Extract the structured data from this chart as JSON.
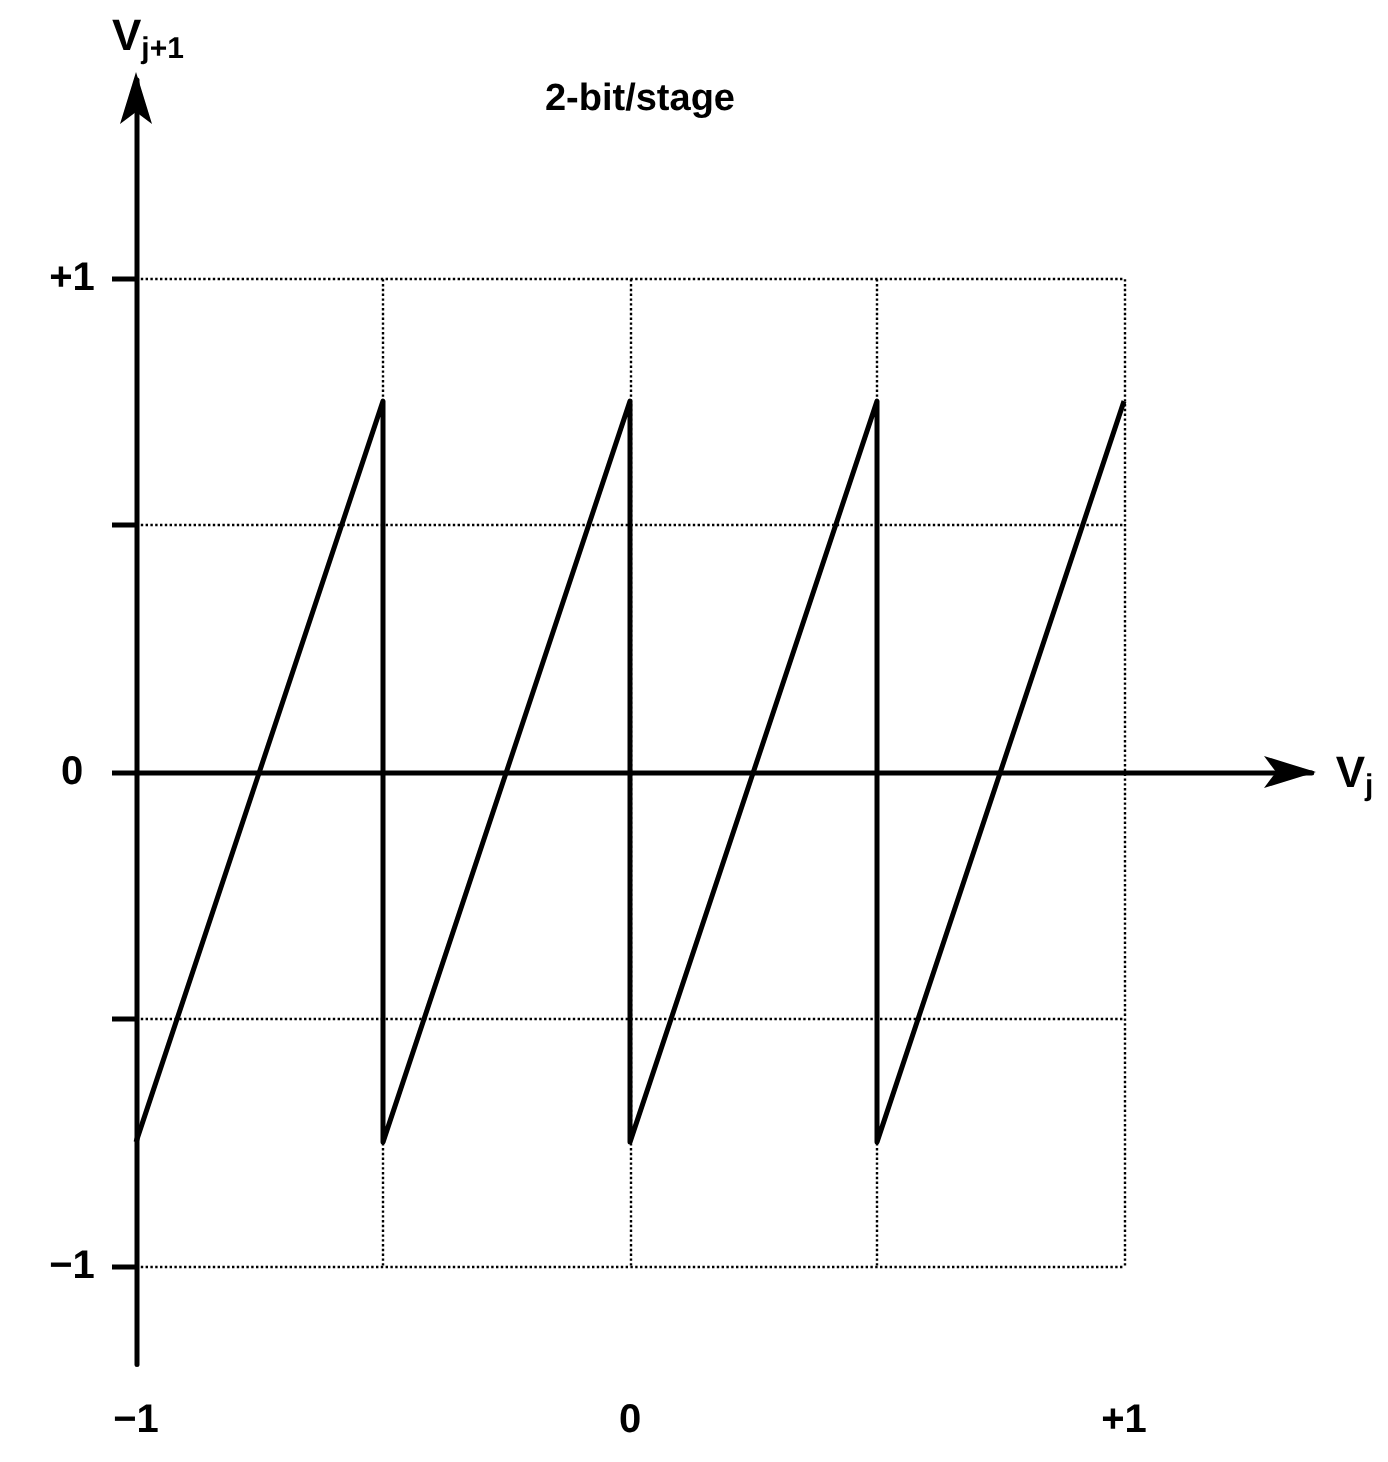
{
  "chart_data": {
    "type": "line",
    "title": "2-bit/stage",
    "xlabel": "V$_{j}$",
    "ylabel": "V$_{j+1}$",
    "series": [
      {
        "color": "#000000",
        "x": [
          -1,
          -0.5,
          -0.5,
          0,
          0,
          0.5,
          0.5,
          1
        ],
        "values": [
          -0.75,
          0.75,
          -0.75,
          0.75,
          -0.75,
          0.75,
          -0.75,
          0.75
        ]
      }
    ],
    "xlim": [
      -1,
      1.38
    ],
    "ylim": [
      -1.2,
      1.4
    ],
    "xticks": [
      {
        "value": -1,
        "label": "−1"
      },
      {
        "value": -0.5,
        "label": null
      },
      {
        "value": 0,
        "label": "0"
      },
      {
        "value": 0.5,
        "label": null
      },
      {
        "value": 1,
        "label": "+1"
      }
    ],
    "yticks": [
      {
        "value": -1,
        "label": "−1"
      },
      {
        "value": -0.5,
        "label": null
      },
      {
        "value": 0,
        "label": "0"
      },
      {
        "value": 0.5,
        "label": null
      },
      {
        "value": 1,
        "label": "+1"
      }
    ],
    "grid": true,
    "marker": "none",
    "line_style": "solid"
  }
}
